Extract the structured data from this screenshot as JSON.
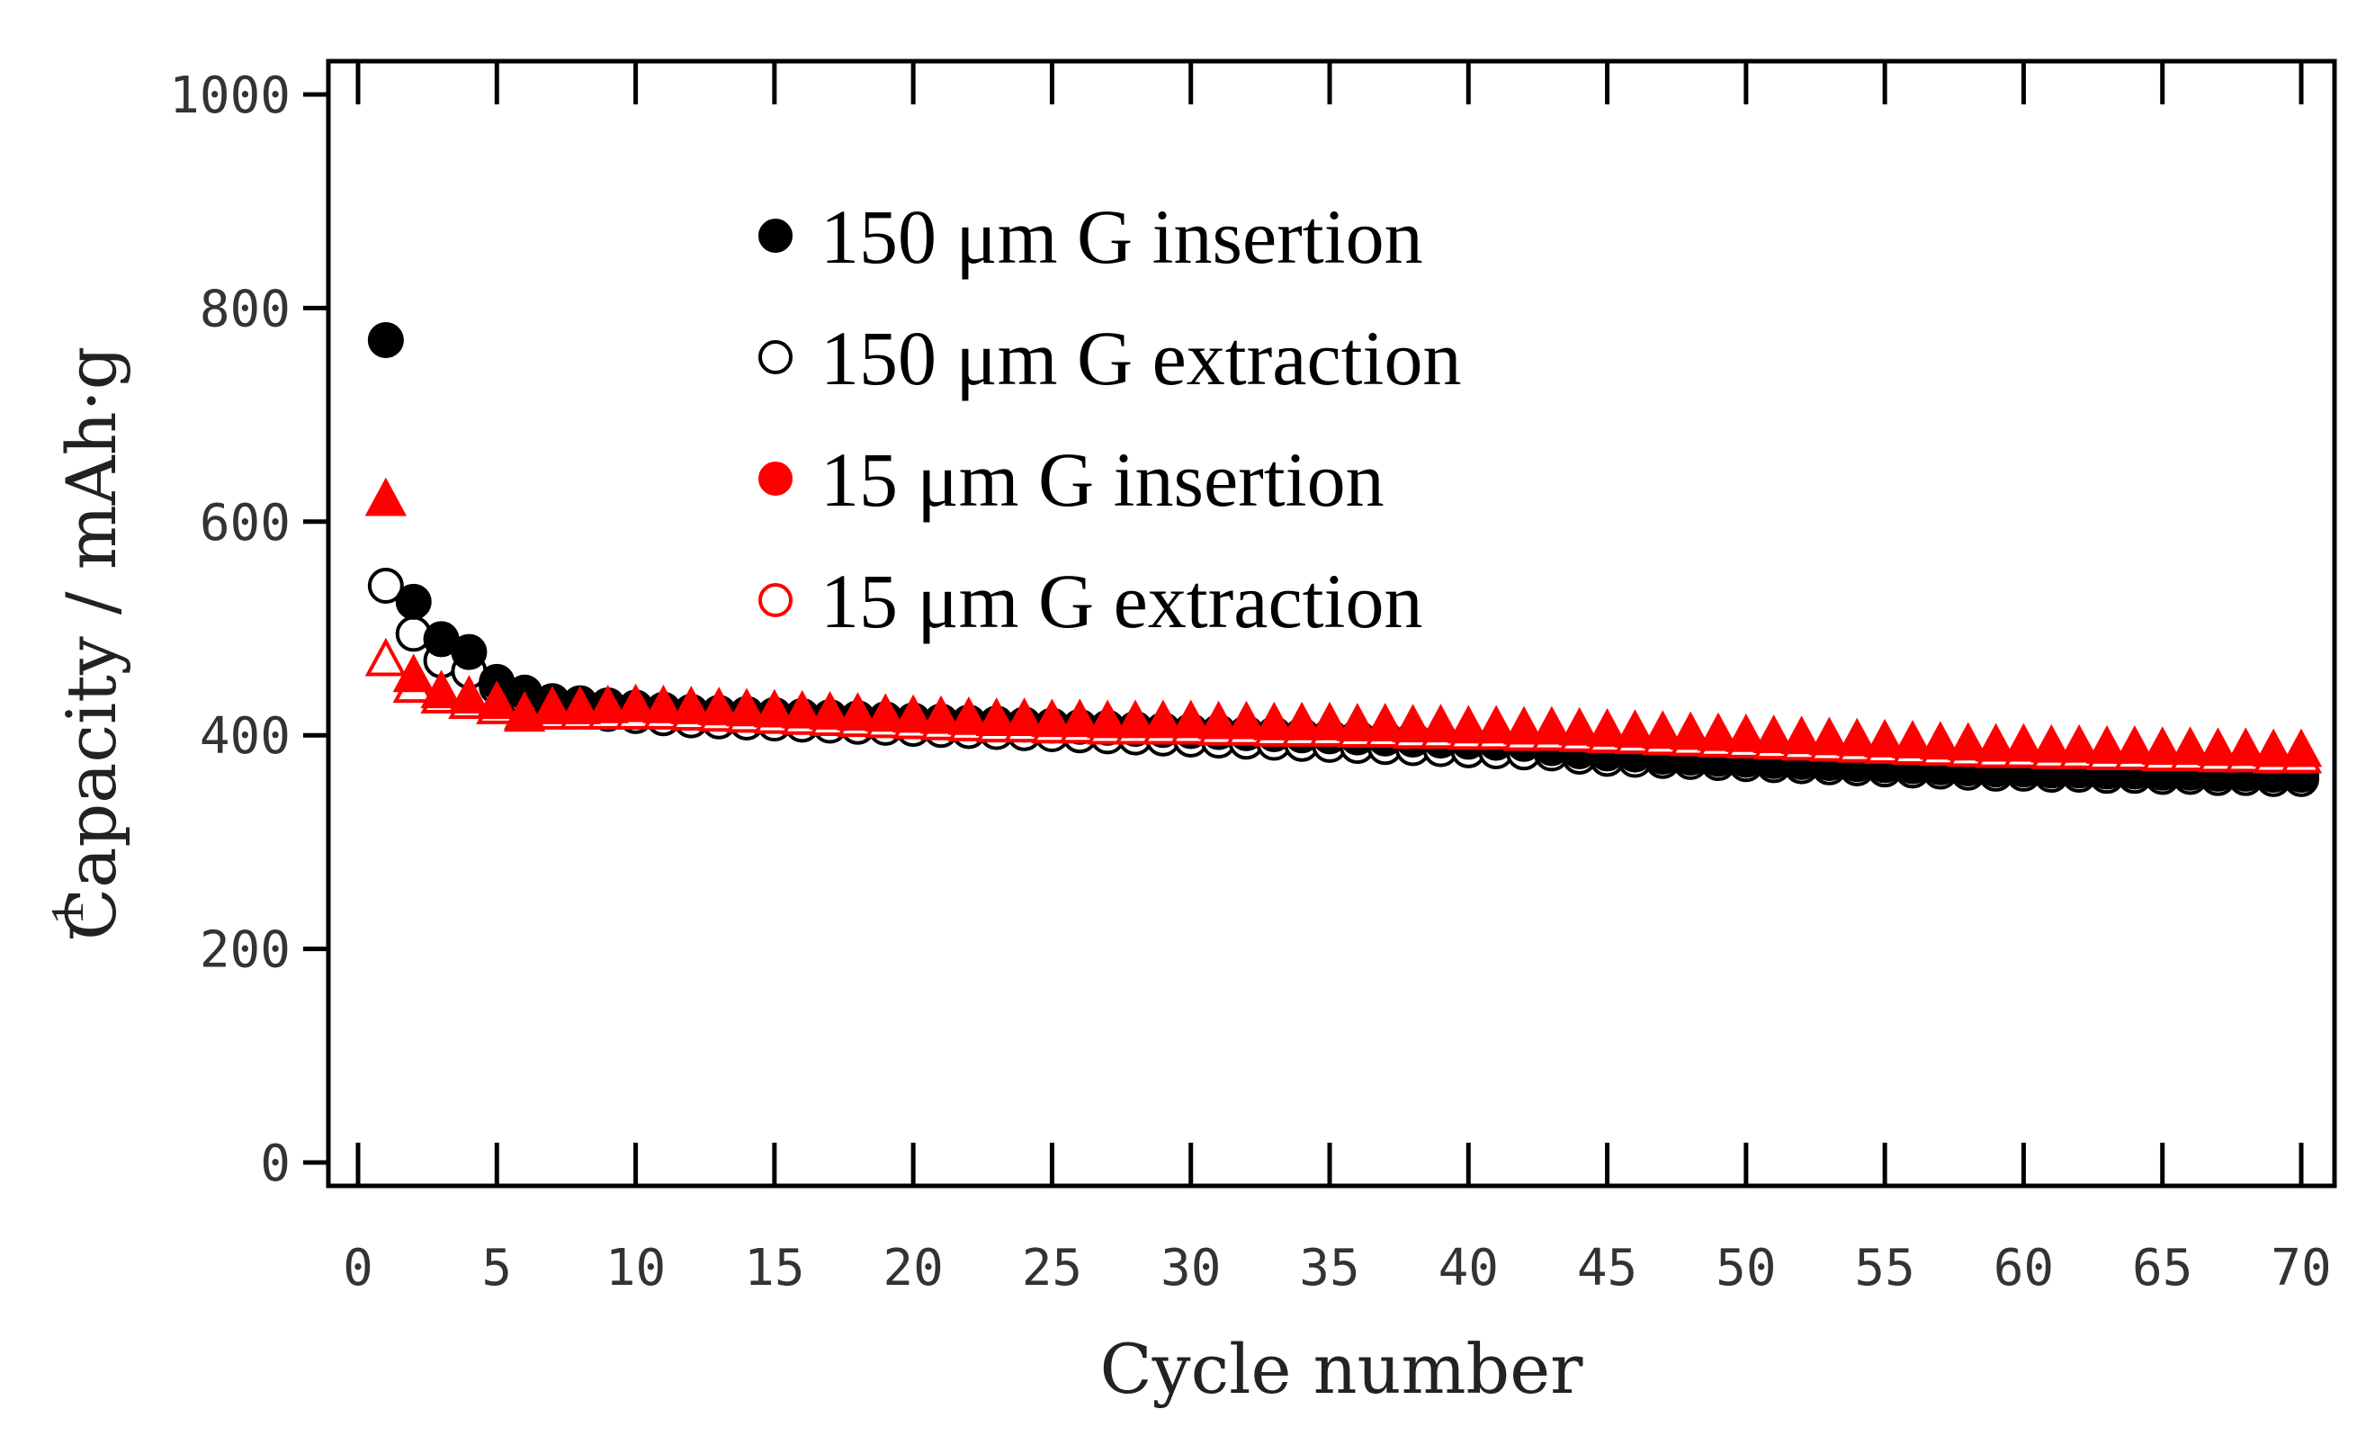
{
  "chart_data": {
    "type": "scatter",
    "title": "",
    "xlabel": "Cycle number",
    "ylabel": "Capacity  / mAh·g",
    "ylabel_superscript": "-1",
    "xlim": [
      0,
      70
    ],
    "ylim": [
      0,
      1000
    ],
    "x_ticks": [
      0,
      5,
      10,
      15,
      20,
      25,
      30,
      35,
      40,
      45,
      50,
      55,
      60,
      65,
      70
    ],
    "y_ticks": [
      0,
      200,
      400,
      600,
      800,
      1000
    ],
    "grid": false,
    "legend_position": "top-center",
    "x": [
      1,
      2,
      3,
      4,
      5,
      6,
      7,
      8,
      9,
      10,
      11,
      12,
      13,
      14,
      15,
      16,
      17,
      18,
      19,
      20,
      21,
      22,
      23,
      24,
      25,
      26,
      27,
      28,
      29,
      30,
      31,
      32,
      33,
      34,
      35,
      36,
      37,
      38,
      39,
      40,
      41,
      42,
      43,
      44,
      45,
      46,
      47,
      48,
      49,
      50,
      51,
      52,
      53,
      54,
      55,
      56,
      57,
      58,
      59,
      60,
      61,
      62,
      63,
      64,
      65,
      66,
      67,
      68,
      69,
      70
    ],
    "series": [
      {
        "name": "150 μm G insertion",
        "marker": "circle",
        "filled": true,
        "color": "#000000",
        "values": [
          770,
          525,
          490,
          478,
          450,
          440,
          432,
          430,
          428,
          426,
          424,
          422,
          421,
          420,
          419,
          418,
          417,
          416,
          415,
          414,
          413,
          412,
          411,
          410,
          409,
          408,
          407,
          406,
          405,
          404,
          403,
          402,
          401,
          400,
          399,
          398,
          397,
          396,
          395,
          394,
          393,
          392,
          388,
          385,
          383,
          382,
          380,
          379,
          378,
          377,
          376,
          375,
          374,
          373,
          372,
          371,
          370,
          369,
          368,
          368,
          367,
          367,
          366,
          366,
          365,
          365,
          364,
          364,
          363,
          363
        ]
      },
      {
        "name": "150 μm G extraction",
        "marker": "circle",
        "filled": false,
        "color": "#000000",
        "values": [
          540,
          495,
          470,
          460,
          445,
          435,
          428,
          424,
          420,
          418,
          416,
          414,
          413,
          412,
          411,
          410,
          409,
          408,
          407,
          406,
          405,
          404,
          403,
          402,
          401,
          400,
          399,
          398,
          397,
          396,
          395,
          394,
          393,
          392,
          391,
          390,
          389,
          388,
          387,
          386,
          385,
          384,
          383,
          380,
          378,
          377,
          376,
          375,
          374,
          373,
          372,
          371,
          370,
          369,
          368,
          367,
          366,
          365,
          364,
          364,
          363,
          363,
          362,
          362,
          361,
          361,
          360,
          360,
          359,
          359
        ]
      },
      {
        "name": "15 μm G insertion",
        "marker": "triangle",
        "filled": true,
        "color": "#ff0000",
        "values": [
          620,
          455,
          440,
          435,
          430,
          420,
          425,
          425,
          426,
          427,
          426,
          425,
          424,
          423,
          422,
          421,
          420,
          419,
          418,
          417,
          416,
          415,
          414,
          414,
          413,
          413,
          412,
          412,
          412,
          412,
          411,
          411,
          410,
          410,
          410,
          409,
          409,
          408,
          408,
          407,
          407,
          406,
          406,
          405,
          404,
          403,
          402,
          401,
          400,
          399,
          398,
          397,
          396,
          395,
          394,
          393,
          392,
          391,
          390,
          390,
          389,
          389,
          388,
          388,
          387,
          387,
          386,
          386,
          385,
          385
        ]
      },
      {
        "name": "15 μm G extraction",
        "marker": "triangle",
        "filled": false,
        "color": "#ff0000",
        "values": [
          470,
          445,
          435,
          430,
          425,
          418,
          420,
          420,
          420,
          420,
          420,
          419,
          418,
          417,
          416,
          415,
          414,
          413,
          412,
          411,
          410,
          409,
          408,
          408,
          407,
          407,
          406,
          406,
          406,
          406,
          405,
          405,
          404,
          404,
          404,
          403,
          403,
          402,
          402,
          401,
          401,
          400,
          400,
          399,
          398,
          397,
          396,
          395,
          394,
          393,
          392,
          391,
          390,
          389,
          388,
          387,
          386,
          385,
          384,
          384,
          383,
          383,
          382,
          382,
          381,
          381,
          380,
          380,
          379,
          379
        ]
      }
    ],
    "legend_labels": [
      "150 μm G insertion",
      "150 μm G extraction",
      "15 μm G insertion",
      "15 μm G extraction"
    ]
  }
}
